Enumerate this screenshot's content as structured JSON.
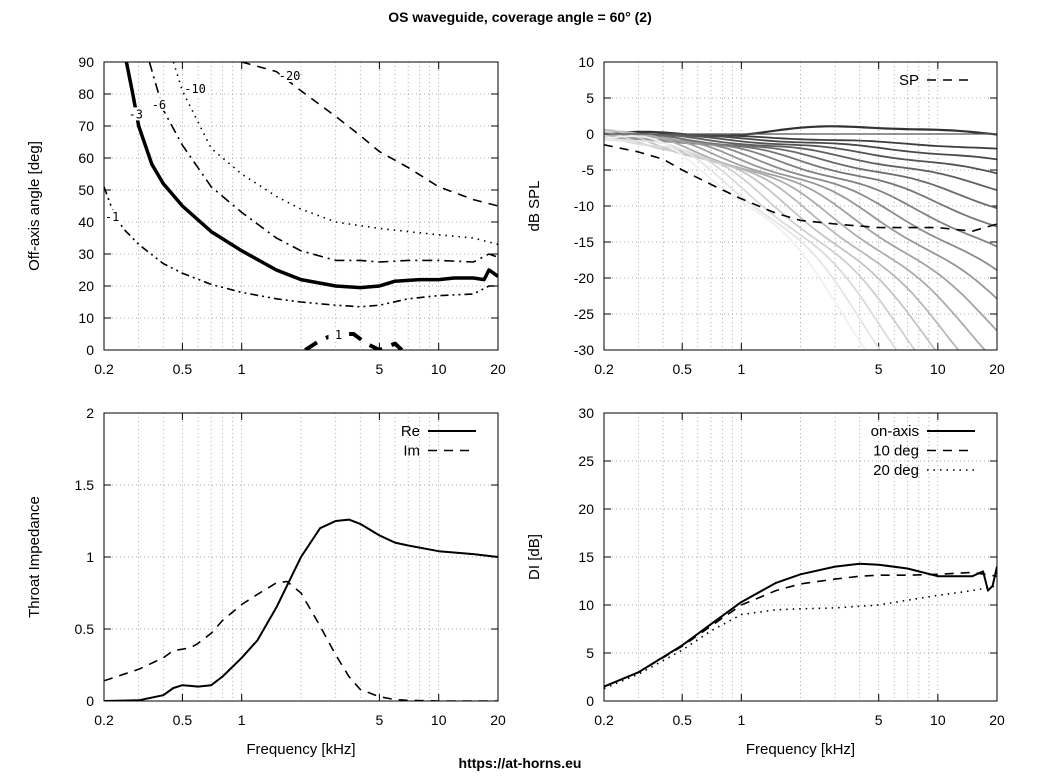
{
  "page": {
    "title": "OS waveguide, coverage angle = 60° (2)",
    "footer": "https://at-horns.eu"
  },
  "chart_data": [
    {
      "type": "line",
      "name": "contour",
      "xlabel": "",
      "ylabel": "Off-axis angle [deg]",
      "xscale": "log",
      "xlim": [
        0.2,
        20
      ],
      "ylim": [
        0,
        90
      ],
      "xticks": [
        "0.2",
        "0.5",
        "1",
        "5",
        "10",
        "20"
      ],
      "yticks": [
        "0",
        "10",
        "20",
        "30",
        "40",
        "50",
        "60",
        "70",
        "80",
        "90"
      ],
      "grid": true,
      "series": [
        {
          "name": "-1",
          "style": "dash-dot-dot",
          "x": [
            0.2,
            0.22,
            0.25,
            0.3,
            0.4,
            0.5,
            0.7,
            1,
            1.5,
            2,
            3,
            4,
            5,
            7,
            10,
            15,
            18,
            20
          ],
          "y": [
            51,
            44,
            38,
            33,
            27,
            24,
            20.5,
            18,
            16,
            15,
            14,
            13.5,
            14,
            16,
            17,
            17.5,
            20,
            20
          ]
        },
        {
          "name": "-3",
          "style": "thick",
          "x": [
            0.26,
            0.28,
            0.3,
            0.35,
            0.4,
            0.5,
            0.7,
            1,
            1.5,
            2,
            3,
            4,
            5,
            6,
            8,
            10,
            12,
            15,
            17,
            18,
            19,
            20
          ],
          "y": [
            90,
            80,
            70,
            58,
            52,
            45,
            37,
            31,
            25,
            22,
            20,
            19.5,
            20,
            21.5,
            22,
            22,
            22.5,
            22.5,
            22,
            25,
            24,
            23
          ]
        },
        {
          "name": "-6",
          "style": "dash-dot",
          "x": [
            0.34,
            0.4,
            0.5,
            0.7,
            1,
            1.5,
            2,
            3,
            4,
            5,
            7,
            10,
            15,
            18,
            20
          ],
          "y": [
            90,
            75,
            64,
            51,
            43,
            35,
            31,
            28,
            28,
            27.5,
            28,
            28,
            27.5,
            30,
            29
          ]
        },
        {
          "name": "-10",
          "style": "dotted",
          "x": [
            0.45,
            0.5,
            0.7,
            1,
            1.5,
            2,
            3,
            5,
            7,
            10,
            15,
            20
          ],
          "y": [
            90,
            81,
            63,
            55,
            48,
            44,
            40,
            38,
            37,
            36,
            35,
            33
          ]
        },
        {
          "name": "-20",
          "style": "dashed",
          "x": [
            1.0,
            1.5,
            2,
            3,
            4,
            5,
            7,
            10,
            15,
            20
          ],
          "y": [
            90,
            87,
            81,
            73,
            67,
            62,
            57,
            51,
            47,
            45
          ]
        },
        {
          "name": "1",
          "style": "thick-dashed",
          "x": [
            2.1,
            2.5,
            3,
            3.7,
            4.3,
            5,
            5.5,
            6,
            6.5
          ],
          "y": [
            0,
            3,
            5,
            5,
            2,
            0,
            1,
            2,
            0
          ]
        }
      ]
    },
    {
      "type": "line",
      "name": "spl",
      "xlabel": "",
      "ylabel": "dB SPL",
      "xscale": "log",
      "xlim": [
        0.2,
        20
      ],
      "ylim": [
        -30,
        10
      ],
      "xticks": [
        "0.2",
        "0.5",
        "1",
        "5",
        "10",
        "20"
      ],
      "yticks": [
        "-30",
        "-25",
        "-20",
        "-15",
        "-10",
        "-5",
        "0",
        "5",
        "10"
      ],
      "grid": true,
      "legend": "top-right",
      "legend_entries": [
        "SP"
      ],
      "curve_count": 18,
      "series": [
        {
          "name": "SP",
          "style": "dashed",
          "x": [
            0.2,
            0.3,
            0.4,
            0.5,
            0.7,
            1,
            1.5,
            2,
            3,
            5,
            7,
            10,
            15,
            20
          ],
          "y": [
            -1.5,
            -2.5,
            -3.5,
            -5,
            -7,
            -9,
            -11,
            -12,
            -12.5,
            -13,
            -13,
            -13,
            -13.5,
            -12.5
          ]
        }
      ]
    },
    {
      "type": "line",
      "name": "impedance",
      "xlabel": "Frequency [kHz]",
      "ylabel": "Throat Impedance",
      "xscale": "log",
      "xlim": [
        0.2,
        20
      ],
      "ylim": [
        0,
        2
      ],
      "xticks": [
        "0.2",
        "0.5",
        "1",
        "5",
        "10",
        "20"
      ],
      "yticks": [
        "0",
        "0.5",
        "1",
        "1.5",
        "2"
      ],
      "grid": true,
      "legend": "top-right",
      "series": [
        {
          "name": "Re",
          "style": "solid",
          "x": [
            0.2,
            0.3,
            0.4,
            0.45,
            0.5,
            0.55,
            0.6,
            0.7,
            0.8,
            1,
            1.2,
            1.5,
            2,
            2.5,
            3,
            3.5,
            4,
            5,
            6,
            7,
            10,
            15,
            20
          ],
          "y": [
            0,
            0.005,
            0.04,
            0.09,
            0.11,
            0.105,
            0.1,
            0.11,
            0.17,
            0.3,
            0.42,
            0.65,
            1.0,
            1.2,
            1.25,
            1.26,
            1.23,
            1.15,
            1.1,
            1.08,
            1.04,
            1.02,
            1.0
          ]
        },
        {
          "name": "Im",
          "style": "dashed",
          "x": [
            0.2,
            0.3,
            0.4,
            0.45,
            0.5,
            0.55,
            0.6,
            0.7,
            0.8,
            1,
            1.2,
            1.5,
            1.7,
            2,
            2.5,
            3,
            3.5,
            4,
            5,
            6,
            7,
            10,
            15,
            20
          ],
          "y": [
            0.14,
            0.22,
            0.3,
            0.35,
            0.36,
            0.37,
            0.4,
            0.47,
            0.56,
            0.67,
            0.74,
            0.82,
            0.83,
            0.75,
            0.52,
            0.32,
            0.17,
            0.08,
            0.03,
            0.01,
            0.005,
            0,
            0,
            0
          ]
        }
      ]
    },
    {
      "type": "line",
      "name": "directivity",
      "xlabel": "Frequency [kHz]",
      "ylabel": "DI [dB]",
      "xscale": "log",
      "xlim": [
        0.2,
        20
      ],
      "ylim": [
        0,
        30
      ],
      "xticks": [
        "0.2",
        "0.5",
        "1",
        "5",
        "10",
        "20"
      ],
      "yticks": [
        "0",
        "5",
        "10",
        "15",
        "20",
        "25",
        "30"
      ],
      "grid": true,
      "legend": "top-right",
      "series": [
        {
          "name": "on-axis",
          "style": "solid",
          "x": [
            0.2,
            0.3,
            0.5,
            0.7,
            1,
            1.5,
            2,
            3,
            4,
            5,
            7,
            10,
            15,
            17,
            18,
            19,
            20
          ],
          "y": [
            1.5,
            3,
            5.8,
            8,
            10.3,
            12.3,
            13.2,
            14,
            14.3,
            14.2,
            13.8,
            13,
            13,
            13.5,
            11.5,
            12,
            14
          ]
        },
        {
          "name": "10 deg",
          "style": "dashed",
          "x": [
            0.2,
            0.3,
            0.5,
            0.7,
            1,
            1.5,
            2,
            3,
            4,
            5,
            7,
            10,
            15,
            20
          ],
          "y": [
            1.5,
            3,
            5.7,
            7.8,
            10,
            11.5,
            12.2,
            12.7,
            13,
            13.1,
            13.1,
            13.2,
            13.4,
            13
          ]
        },
        {
          "name": "20 deg",
          "style": "dotted",
          "x": [
            0.2,
            0.3,
            0.5,
            0.7,
            1,
            1.5,
            2,
            3,
            5,
            7,
            10,
            15,
            20
          ],
          "y": [
            1.3,
            2.8,
            5.3,
            7.3,
            9,
            9.5,
            9.6,
            9.7,
            10,
            10.5,
            11,
            11.5,
            12
          ]
        }
      ]
    }
  ]
}
